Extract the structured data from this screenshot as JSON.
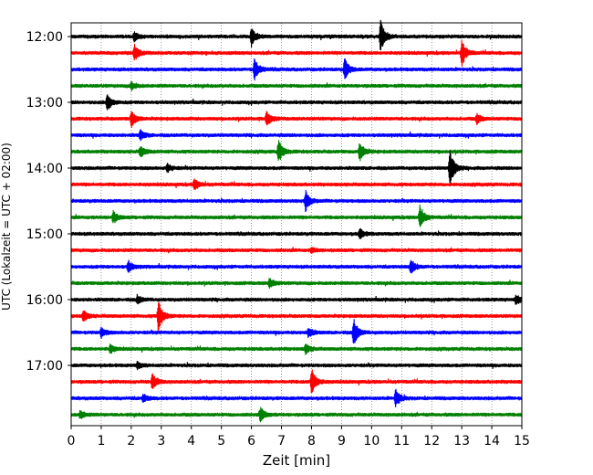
{
  "chart_data": {
    "type": "line",
    "subtype": "helicorder",
    "xlabel": "Zeit  [min]",
    "ylabel": "UTC (Lokalzeit = UTC + 02:00)",
    "xlim": [
      0,
      15
    ],
    "x_ticks": [
      0,
      1,
      2,
      3,
      4,
      5,
      6,
      7,
      8,
      9,
      10,
      11,
      12,
      13,
      14,
      15
    ],
    "y_tick_labels": [
      "12:00",
      "13:00",
      "14:00",
      "15:00",
      "16:00",
      "17:00"
    ],
    "grid": "x-only dotted",
    "trace_colors": [
      "#000000",
      "#ff0000",
      "#0000ff",
      "#008000"
    ],
    "traces": [
      {
        "start": "12:00",
        "events": [
          {
            "x": 6.0,
            "amp": 0.55
          },
          {
            "x": 10.3,
            "amp": 1.0
          },
          {
            "x": 2.1,
            "amp": 0.25
          }
        ]
      },
      {
        "start": "12:15",
        "events": [
          {
            "x": 2.1,
            "amp": 0.5
          },
          {
            "x": 13.0,
            "amp": 0.8
          }
        ]
      },
      {
        "start": "12:30",
        "events": [
          {
            "x": 6.1,
            "amp": 0.7
          },
          {
            "x": 9.1,
            "amp": 0.65
          }
        ]
      },
      {
        "start": "12:45",
        "events": [
          {
            "x": 2.0,
            "amp": 0.25
          }
        ]
      },
      {
        "start": "13:00",
        "events": [
          {
            "x": 1.2,
            "amp": 0.55
          }
        ]
      },
      {
        "start": "13:15",
        "events": [
          {
            "x": 2.0,
            "amp": 0.5
          },
          {
            "x": 6.5,
            "amp": 0.45
          },
          {
            "x": 13.5,
            "amp": 0.3
          }
        ]
      },
      {
        "start": "13:30",
        "events": [
          {
            "x": 2.3,
            "amp": 0.3
          }
        ]
      },
      {
        "start": "13:45",
        "events": [
          {
            "x": 2.3,
            "amp": 0.35
          },
          {
            "x": 6.9,
            "amp": 0.7
          },
          {
            "x": 9.6,
            "amp": 0.6
          }
        ]
      },
      {
        "start": "14:00",
        "events": [
          {
            "x": 12.6,
            "amp": 1.15
          },
          {
            "x": 3.2,
            "amp": 0.25
          }
        ]
      },
      {
        "start": "14:15",
        "events": [
          {
            "x": 4.1,
            "amp": 0.35
          }
        ]
      },
      {
        "start": "14:30",
        "events": [
          {
            "x": 7.8,
            "amp": 0.6
          }
        ]
      },
      {
        "start": "14:45",
        "events": [
          {
            "x": 1.4,
            "amp": 0.35
          },
          {
            "x": 11.6,
            "amp": 0.7
          }
        ]
      },
      {
        "start": "15:00",
        "events": [
          {
            "x": 9.6,
            "amp": 0.3
          }
        ]
      },
      {
        "start": "15:15",
        "events": [
          {
            "x": 8.0,
            "amp": 0.15
          }
        ]
      },
      {
        "start": "15:30",
        "events": [
          {
            "x": 1.9,
            "amp": 0.35
          },
          {
            "x": 11.3,
            "amp": 0.45
          }
        ]
      },
      {
        "start": "15:45",
        "events": [
          {
            "x": 6.6,
            "amp": 0.3
          }
        ]
      },
      {
        "start": "16:00",
        "events": [
          {
            "x": 2.2,
            "amp": 0.25
          },
          {
            "x": 14.8,
            "amp": 0.3
          }
        ]
      },
      {
        "start": "16:15",
        "events": [
          {
            "x": 0.4,
            "amp": 0.35
          },
          {
            "x": 2.9,
            "amp": 1.0
          }
        ]
      },
      {
        "start": "16:30",
        "events": [
          {
            "x": 1.0,
            "amp": 0.3
          },
          {
            "x": 7.9,
            "amp": 0.3
          },
          {
            "x": 9.4,
            "amp": 0.85
          }
        ]
      },
      {
        "start": "16:45",
        "events": [
          {
            "x": 1.3,
            "amp": 0.25
          },
          {
            "x": 7.8,
            "amp": 0.3
          }
        ]
      },
      {
        "start": "17:00",
        "events": [
          {
            "x": 2.2,
            "amp": 0.2
          }
        ]
      },
      {
        "start": "17:15",
        "events": [
          {
            "x": 2.7,
            "amp": 0.5
          },
          {
            "x": 8.0,
            "amp": 0.85
          }
        ]
      },
      {
        "start": "17:30",
        "events": [
          {
            "x": 2.4,
            "amp": 0.25
          },
          {
            "x": 10.8,
            "amp": 0.55
          }
        ]
      },
      {
        "start": "17:45",
        "events": [
          {
            "x": 6.3,
            "amp": 0.45
          },
          {
            "x": 0.3,
            "amp": 0.25
          }
        ]
      }
    ]
  }
}
